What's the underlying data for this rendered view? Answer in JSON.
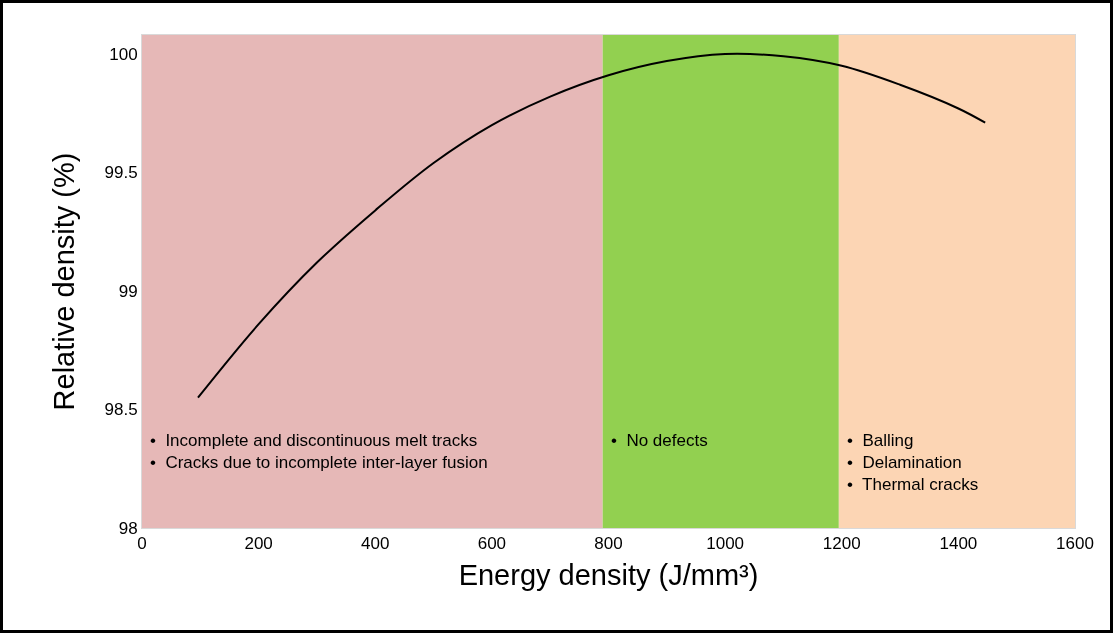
{
  "chart_data": {
    "type": "line",
    "xlabel": "Energy density (J/mm³)",
    "ylabel": "Relative density (%)",
    "x": [
      96,
      200,
      300,
      400,
      500,
      600,
      700,
      800,
      900,
      1000,
      1100,
      1200,
      1300,
      1400,
      1446
    ],
    "series": [
      {
        "color": "#000000",
        "values": [
          98.55,
          98.86,
          99.12,
          99.34,
          99.54,
          99.7,
          99.82,
          99.91,
          99.97,
          100.0,
          99.99,
          99.95,
          99.87,
          99.77,
          99.71
        ]
      }
    ],
    "xlim": [
      0,
      1600
    ],
    "xticks": [
      0,
      200,
      400,
      600,
      800,
      1000,
      1200,
      1400,
      1600
    ],
    "ylim": [
      98,
      100.08
    ],
    "yticks": [
      98,
      98.5,
      99,
      99.5,
      100
    ],
    "bands": [
      {
        "axis": "x",
        "from": 0,
        "to": 790,
        "color": "#e6b8b7",
        "label": "•  Incomplete and discontinuous melt tracks\n•  Cracks due to incomplete inter-layer fusion"
      },
      {
        "axis": "x",
        "from": 790,
        "to": 1195,
        "color": "#92d050",
        "label": "•  No defects"
      },
      {
        "axis": "x",
        "from": 1195,
        "to": 1600,
        "color": "#fcd5b4",
        "label": "•  Balling\n•  Delamination\n•  Thermal cracks"
      }
    ],
    "grid": false,
    "marker": "none",
    "line_style": "solid"
  }
}
